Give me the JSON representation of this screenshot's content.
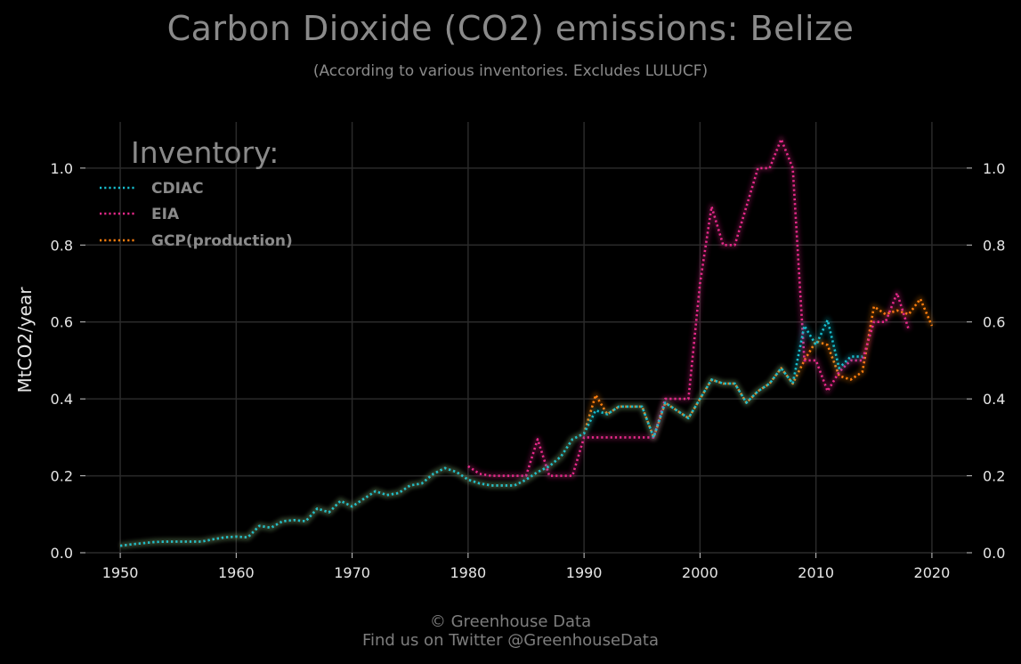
{
  "header": {
    "title": "Carbon Dioxide (CO2) emissions: Belize",
    "subtitle": "(According to various inventories. Excludes LULUCF)"
  },
  "footer": {
    "line1": "© Greenhouse Data",
    "line2": "Find us on Twitter @GreenhouseData"
  },
  "colors": {
    "background": "#000000",
    "grid": "#2a2a2a",
    "CDIAC": "#17becf",
    "EIA": "#e7298a",
    "GCP(production)": "#ff7f0e"
  },
  "chart_data": {
    "type": "line",
    "title": "Carbon Dioxide (CO2) emissions: Belize",
    "subtitle": "(According to various inventories. Excludes LULUCF)",
    "xlabel": "",
    "ylabel": "MtCO2/year",
    "xlim": [
      1947,
      2023
    ],
    "ylim": [
      0,
      1.12
    ],
    "x_ticks": [
      1950,
      1960,
      1970,
      1980,
      1990,
      2000,
      2010,
      2020
    ],
    "y_ticks": [
      "0.0",
      "0.2",
      "0.4",
      "0.6",
      "0.8",
      "1.0"
    ],
    "grid": true,
    "line_style": "dotted",
    "legend": {
      "title": "Inventory:",
      "position": "top-left",
      "entries": [
        "CDIAC",
        "EIA",
        "GCP(production)"
      ]
    },
    "series": [
      {
        "name": "CDIAC",
        "x": [
          1950,
          1951,
          1952,
          1953,
          1954,
          1955,
          1956,
          1957,
          1958,
          1959,
          1960,
          1961,
          1962,
          1963,
          1964,
          1965,
          1966,
          1967,
          1968,
          1969,
          1970,
          1971,
          1972,
          1973,
          1974,
          1975,
          1976,
          1977,
          1978,
          1979,
          1980,
          1981,
          1982,
          1983,
          1984,
          1985,
          1986,
          1987,
          1988,
          1989,
          1990,
          1991,
          1992,
          1993,
          1994,
          1995,
          1996,
          1997,
          1998,
          1999,
          2000,
          2001,
          2002,
          2003,
          2004,
          2005,
          2006,
          2007,
          2008,
          2009,
          2010,
          2011,
          2012,
          2013,
          2014
        ],
        "values": [
          0.018,
          0.022,
          0.025,
          0.028,
          0.029,
          0.029,
          0.029,
          0.029,
          0.035,
          0.04,
          0.042,
          0.04,
          0.07,
          0.065,
          0.082,
          0.085,
          0.082,
          0.115,
          0.105,
          0.135,
          0.12,
          0.14,
          0.16,
          0.15,
          0.155,
          0.175,
          0.18,
          0.205,
          0.22,
          0.21,
          0.19,
          0.18,
          0.175,
          0.175,
          0.175,
          0.19,
          0.21,
          0.225,
          0.25,
          0.295,
          0.31,
          0.37,
          0.36,
          0.38,
          0.38,
          0.38,
          0.3,
          0.39,
          0.37,
          0.35,
          0.4,
          0.45,
          0.44,
          0.44,
          0.39,
          0.42,
          0.44,
          0.48,
          0.44,
          0.59,
          0.54,
          0.605,
          0.48,
          0.51,
          0.51
        ]
      },
      {
        "name": "EIA",
        "x": [
          1980,
          1981,
          1982,
          1983,
          1984,
          1985,
          1986,
          1987,
          1988,
          1989,
          1990,
          1991,
          1992,
          1993,
          1994,
          1995,
          1996,
          1997,
          1998,
          1999,
          2000,
          2001,
          2002,
          2003,
          2004,
          2005,
          2006,
          2007,
          2008,
          2009,
          2010,
          2011,
          2012,
          2013,
          2014,
          2015,
          2016,
          2017,
          2018
        ],
        "values": [
          0.225,
          0.205,
          0.2,
          0.2,
          0.2,
          0.2,
          0.295,
          0.2,
          0.2,
          0.2,
          0.3,
          0.3,
          0.3,
          0.3,
          0.3,
          0.3,
          0.3,
          0.4,
          0.4,
          0.4,
          0.7,
          0.9,
          0.8,
          0.8,
          0.9,
          1.0,
          1.0,
          1.075,
          1.0,
          0.5,
          0.5,
          0.42,
          0.47,
          0.5,
          0.5,
          0.6,
          0.6,
          0.675,
          0.58
        ]
      },
      {
        "name": "GCP(production)",
        "x": [
          1950,
          1951,
          1952,
          1953,
          1954,
          1955,
          1956,
          1957,
          1958,
          1959,
          1960,
          1961,
          1962,
          1963,
          1964,
          1965,
          1966,
          1967,
          1968,
          1969,
          1970,
          1971,
          1972,
          1973,
          1974,
          1975,
          1976,
          1977,
          1978,
          1979,
          1980,
          1981,
          1982,
          1983,
          1984,
          1985,
          1986,
          1987,
          1988,
          1989,
          1990,
          1991,
          1992,
          1993,
          1994,
          1995,
          1996,
          1997,
          1998,
          1999,
          2000,
          2001,
          2002,
          2003,
          2004,
          2005,
          2006,
          2007,
          2008,
          2009,
          2010,
          2011,
          2012,
          2013,
          2014,
          2015,
          2016,
          2017,
          2018,
          2019,
          2020
        ],
        "values": [
          0.018,
          0.022,
          0.025,
          0.028,
          0.029,
          0.029,
          0.029,
          0.029,
          0.035,
          0.04,
          0.042,
          0.04,
          0.07,
          0.065,
          0.082,
          0.085,
          0.082,
          0.115,
          0.105,
          0.135,
          0.12,
          0.14,
          0.16,
          0.15,
          0.155,
          0.175,
          0.18,
          0.205,
          0.22,
          0.21,
          0.19,
          0.18,
          0.175,
          0.175,
          0.175,
          0.19,
          0.21,
          0.225,
          0.25,
          0.295,
          0.31,
          0.41,
          0.36,
          0.38,
          0.38,
          0.38,
          0.3,
          0.39,
          0.37,
          0.35,
          0.4,
          0.45,
          0.44,
          0.44,
          0.39,
          0.42,
          0.44,
          0.48,
          0.44,
          0.5,
          0.55,
          0.54,
          0.46,
          0.45,
          0.47,
          0.64,
          0.62,
          0.63,
          0.62,
          0.66,
          0.59
        ]
      }
    ]
  }
}
